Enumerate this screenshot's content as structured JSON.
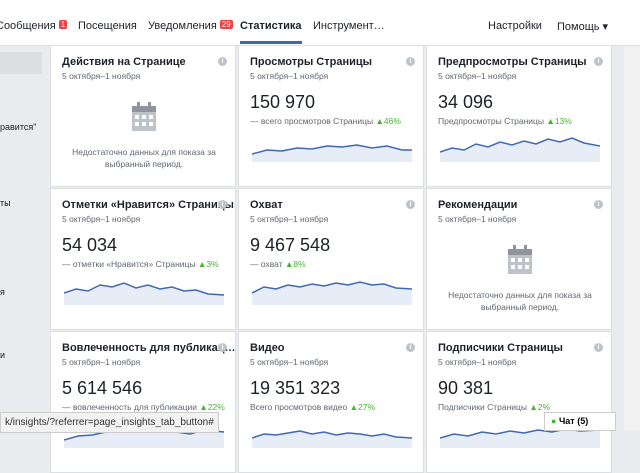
{
  "nav": {
    "tabs": [
      {
        "label": "Сообщения",
        "badge": "1"
      },
      {
        "label": "Посещения"
      },
      {
        "label": "Уведомления",
        "badge": "29"
      },
      {
        "label": "Статистика"
      },
      {
        "label": "Инструмент…"
      }
    ],
    "settings": "Настройки",
    "help": "Помощь ▾"
  },
  "sidebar": [
    "равится\"",
    "ты",
    "я",
    "и"
  ],
  "cards": [
    {
      "title": "Действия на Странице",
      "date": "5 октября–1 ноября",
      "empty": "Недостаточно данных для показа за выбранный период."
    },
    {
      "title": "Просмотры Страницы",
      "date": "5 октября–1 ноября",
      "value": "150 970",
      "caption": "— всего просмотров Страницы",
      "change": "46%"
    },
    {
      "title": "Предпросмотры Страницы",
      "date": "5 октября–1 ноября",
      "value": "34 096",
      "caption": "Предпросмотры Страницы",
      "change": "13%"
    },
    {
      "title": "Отметки «Нравится» Страницы",
      "date": "5 октября–1 ноября",
      "value": "54 034",
      "caption": "— отметки «Нравится» Страницы",
      "change": "3%"
    },
    {
      "title": "Охват",
      "date": "5 октября–1 ноября",
      "value": "9 467 548",
      "caption": "— охват",
      "change": "8%"
    },
    {
      "title": "Рекомендации",
      "date": "5 октября–1 ноября",
      "empty": "Недостаточно данных для показа за выбранный период."
    },
    {
      "title": "Вовлеченность для публикац…",
      "date": "5 октября–1 ноября",
      "value": "5 614 546",
      "caption": "— вовлеченность для публикации",
      "change": "22%"
    },
    {
      "title": "Видео",
      "date": "5 октября–1 ноября",
      "value": "19 351 323",
      "caption": "Всего просмотров видео",
      "change": "27%"
    },
    {
      "title": "Подписчики Страницы",
      "date": "5 октября–1 ноября",
      "value": "90 381",
      "caption": "Подписчики Страницы",
      "change": "2%"
    }
  ],
  "status_url": "k/insights/?referrer=page_insights_tab_button#",
  "chat": "Чат (5)"
}
